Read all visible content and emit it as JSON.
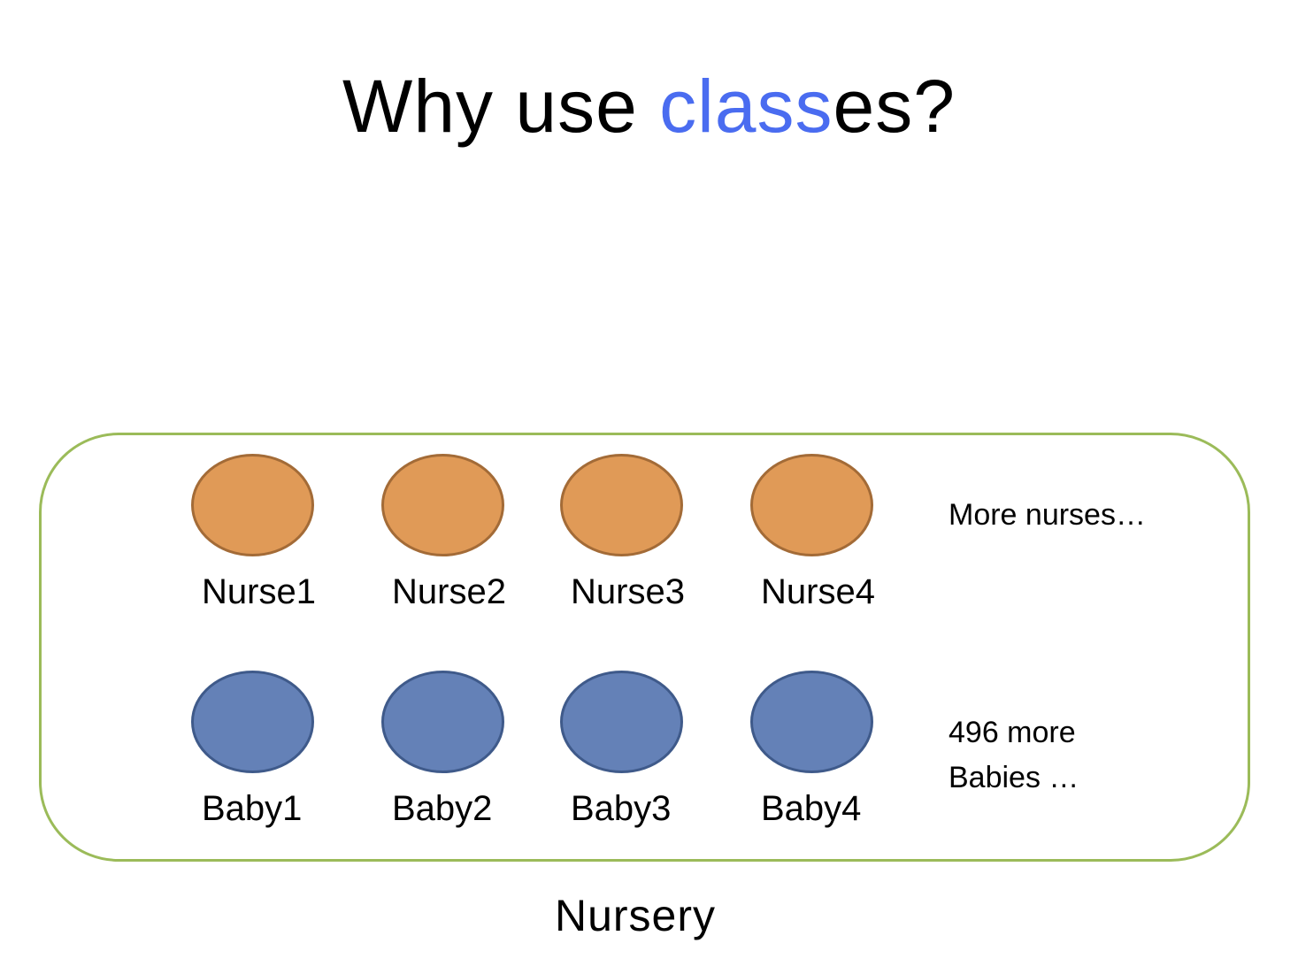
{
  "slide": {
    "title_before": "Why use ",
    "title_accent": "class",
    "title_after": "es?",
    "accent_color": "#4a6cf0"
  },
  "nursery": {
    "label": "Nursery",
    "border_color": "#9bbb59"
  },
  "nurses": {
    "color": "#e09a57",
    "items": [
      {
        "label": "Nurse1"
      },
      {
        "label": "Nurse2"
      },
      {
        "label": "Nurse3"
      },
      {
        "label": "Nurse4"
      }
    ],
    "more_note": "More nurses…"
  },
  "babies": {
    "color": "#6481b7",
    "items": [
      {
        "label": "Baby1"
      },
      {
        "label": "Baby2"
      },
      {
        "label": "Baby3"
      },
      {
        "label": "Baby4"
      }
    ],
    "more_note_line1": "496 more",
    "more_note_line2": "Babies …"
  }
}
